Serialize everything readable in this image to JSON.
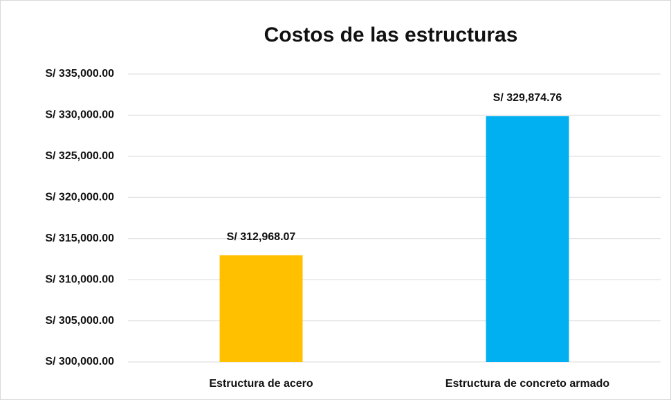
{
  "chart_data": {
    "type": "bar",
    "title": "Costos de las estructuras",
    "categories": [
      "Estructura de acero",
      "Estructura de concreto armado"
    ],
    "values": [
      312968.07,
      329874.76
    ],
    "value_labels": [
      "S/ 312,968.07",
      "S/ 329,874.76"
    ],
    "colors": [
      "#ffc000",
      "#00b0f0"
    ],
    "ylim": [
      300000,
      335000
    ],
    "yticks": [
      {
        "value": 300000,
        "label": "S/ 300,000.00"
      },
      {
        "value": 305000,
        "label": "S/ 305,000.00"
      },
      {
        "value": 310000,
        "label": "S/ 310,000.00"
      },
      {
        "value": 315000,
        "label": "S/ 315,000.00"
      },
      {
        "value": 320000,
        "label": "S/ 320,000.00"
      },
      {
        "value": 325000,
        "label": "S/ 325,000.00"
      },
      {
        "value": 330000,
        "label": "S/ 330,000.00"
      },
      {
        "value": 335000,
        "label": "S/ 335,000.00"
      }
    ],
    "grid": true
  }
}
